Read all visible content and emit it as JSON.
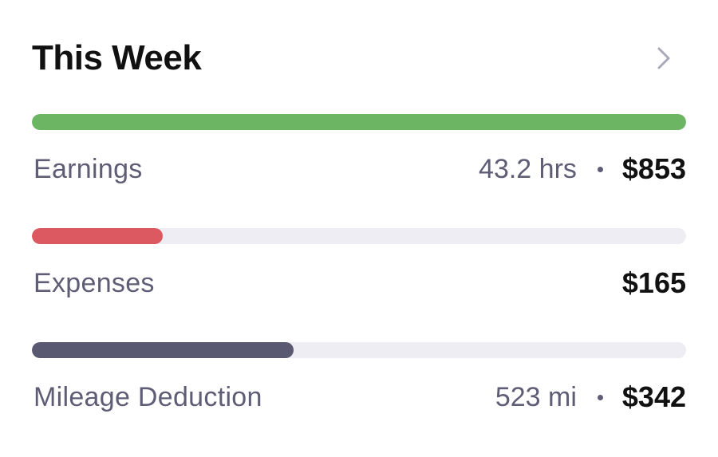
{
  "card": {
    "title": "This Week"
  },
  "rows": [
    {
      "label": "Earnings",
      "meta": "43.2 hrs",
      "amount": "$853",
      "progress": 1.0,
      "color": "#6cb663"
    },
    {
      "label": "Expenses",
      "meta": "",
      "amount": "$165",
      "progress": 0.2,
      "color": "#dd5962"
    },
    {
      "label": "Mileage Deduction",
      "meta": "523 mi",
      "amount": "$342",
      "progress": 0.4,
      "color": "#595a72"
    }
  ],
  "icons": {
    "chevron": "chevron-right-icon"
  },
  "colors": {
    "track": "#eeedf3",
    "text_muted": "#5e5d75",
    "text_strong": "#111111"
  }
}
